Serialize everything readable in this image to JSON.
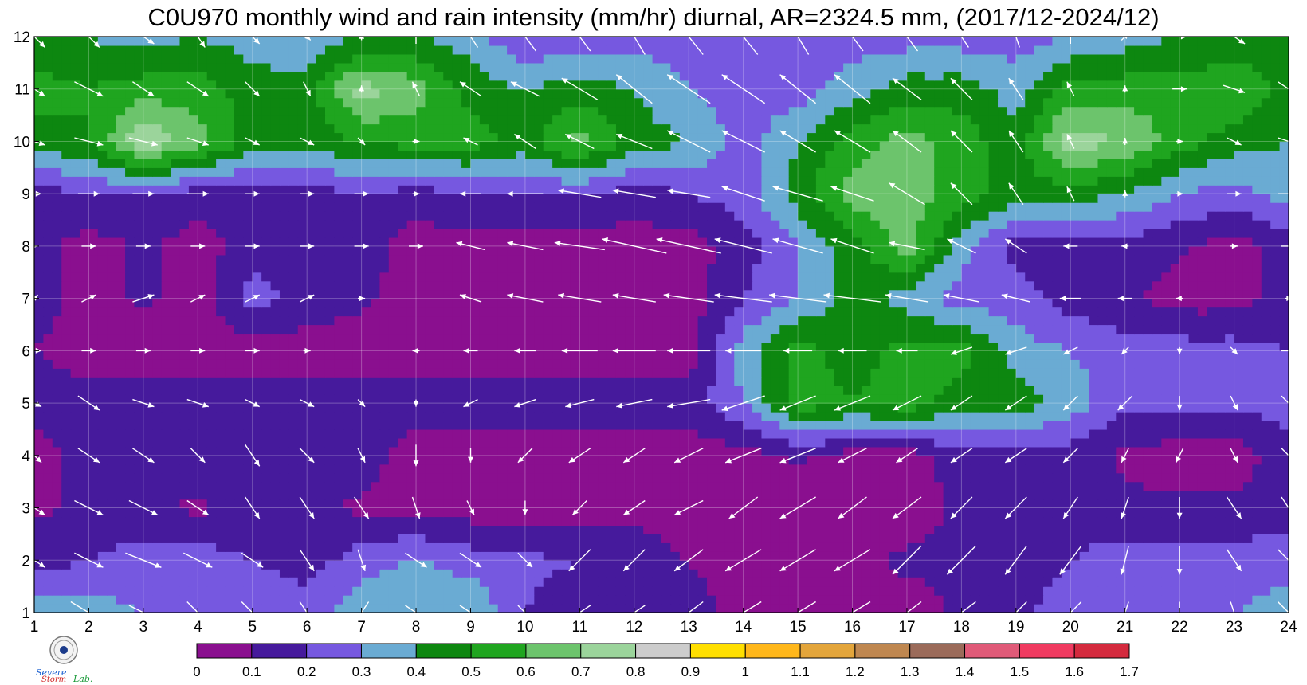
{
  "chart_data": {
    "type": "heatmap",
    "title": "C0U970 monthly wind and rain intensity (mm/hr) diurnal, AR=2324.5 mm, (2017/12-2024/12)",
    "xlabel": "",
    "ylabel": "",
    "x": [
      1,
      2,
      3,
      4,
      5,
      6,
      7,
      8,
      9,
      10,
      11,
      12,
      13,
      14,
      15,
      16,
      17,
      18,
      19,
      20,
      21,
      22,
      23,
      24
    ],
    "y": [
      1,
      2,
      3,
      4,
      5,
      6,
      7,
      8,
      9,
      10,
      11,
      12
    ],
    "xlim": [
      1,
      24
    ],
    "ylim": [
      1,
      12
    ],
    "x_ticks": [
      "1",
      "2",
      "3",
      "4",
      "5",
      "6",
      "7",
      "8",
      "9",
      "10",
      "11",
      "12",
      "13",
      "14",
      "15",
      "16",
      "17",
      "18",
      "19",
      "20",
      "21",
      "22",
      "23",
      "24"
    ],
    "y_ticks": [
      "1",
      "2",
      "3",
      "4",
      "5",
      "6",
      "7",
      "8",
      "9",
      "10",
      "11",
      "12"
    ],
    "grid": true,
    "colorbar": {
      "levels": [
        0,
        0.1,
        0.2,
        0.3,
        0.4,
        0.5,
        0.6,
        0.7,
        0.8,
        0.9,
        1,
        1.1,
        1.2,
        1.3,
        1.4,
        1.5,
        1.6,
        1.7
      ],
      "labels": [
        "0",
        "0.1",
        "0.2",
        "0.3",
        "0.4",
        "0.5",
        "0.6",
        "0.7",
        "0.8",
        "0.9",
        "1",
        "1.1",
        "1.2",
        "1.3",
        "1.4",
        "1.5",
        "1.6",
        "1.7"
      ],
      "colors": [
        "#8a0f8f",
        "#461a9c",
        "#7658e0",
        "#6aabd3",
        "#0d8710",
        "#1fa51f",
        "#6cc46c",
        "#9bd49b",
        "#cccccc",
        "#ffdf00",
        "#ffb71b",
        "#e3a53b",
        "#bf8750",
        "#9b6b5a",
        "#e05a78",
        "#f03a60",
        "#d42a3e"
      ],
      "position": "bottom"
    },
    "values": [
      [
        0.35,
        0.35,
        0.3,
        0.25,
        0.3,
        0.25,
        0.38,
        0.35,
        0.4,
        0.2,
        0.15,
        0.15,
        0.15,
        0.05,
        0.08,
        0.08,
        0.05,
        0.12,
        0.18,
        0.25,
        0.25,
        0.25,
        0.3,
        0.35
      ],
      [
        0.15,
        0.2,
        0.25,
        0.25,
        0.2,
        0.15,
        0.25,
        0.32,
        0.25,
        0.22,
        0.2,
        0.15,
        0.1,
        0.05,
        0.05,
        0.08,
        0.12,
        0.12,
        0.15,
        0.2,
        0.25,
        0.25,
        0.25,
        0.25
      ],
      [
        0.08,
        0.12,
        0.12,
        0.08,
        0.15,
        0.12,
        0.08,
        0.05,
        0.05,
        0.05,
        0.05,
        0.08,
        0.05,
        0.05,
        0.05,
        0.05,
        0.05,
        0.12,
        0.15,
        0.15,
        0.12,
        0.12,
        0.12,
        0.15
      ],
      [
        0.05,
        0.15,
        0.15,
        0.15,
        0.15,
        0.15,
        0.15,
        0.05,
        0.05,
        0.05,
        0.05,
        0.05,
        0.05,
        0.05,
        0.12,
        0.05,
        0.05,
        0.15,
        0.15,
        0.15,
        0.08,
        0.05,
        0.05,
        0.15
      ],
      [
        0.15,
        0.15,
        0.15,
        0.15,
        0.15,
        0.15,
        0.15,
        0.15,
        0.15,
        0.15,
        0.15,
        0.15,
        0.15,
        0.3,
        0.55,
        0.5,
        0.55,
        0.45,
        0.45,
        0.35,
        0.22,
        0.22,
        0.22,
        0.25
      ],
      [
        0.1,
        0.05,
        0.05,
        0.05,
        0.05,
        0.05,
        0.05,
        0.05,
        0.05,
        0.05,
        0.05,
        0.05,
        0.05,
        0.35,
        0.55,
        0.45,
        0.55,
        0.55,
        0.35,
        0.3,
        0.25,
        0.25,
        0.25,
        0.2
      ],
      [
        0.15,
        0.05,
        0.12,
        0.05,
        0.25,
        0.15,
        0.12,
        0.05,
        0.05,
        0.05,
        0.05,
        0.05,
        0.05,
        0.2,
        0.3,
        0.45,
        0.35,
        0.25,
        0.25,
        0.15,
        0.12,
        0.05,
        0.05,
        0.15
      ],
      [
        0.15,
        0.05,
        0.12,
        0.05,
        0.15,
        0.15,
        0.15,
        0.05,
        0.05,
        0.05,
        0.05,
        0.05,
        0.05,
        0.15,
        0.3,
        0.45,
        0.65,
        0.35,
        0.15,
        0.15,
        0.15,
        0.12,
        0.05,
        0.15
      ],
      [
        0.15,
        0.2,
        0.2,
        0.15,
        0.15,
        0.15,
        0.2,
        0.15,
        0.2,
        0.2,
        0.2,
        0.15,
        0.2,
        0.25,
        0.45,
        0.65,
        0.65,
        0.55,
        0.45,
        0.45,
        0.4,
        0.3,
        0.25,
        0.35
      ],
      [
        0.45,
        0.5,
        0.8,
        0.65,
        0.45,
        0.45,
        0.5,
        0.55,
        0.55,
        0.45,
        0.65,
        0.45,
        0.4,
        0.25,
        0.4,
        0.55,
        0.65,
        0.55,
        0.45,
        0.75,
        0.7,
        0.55,
        0.45,
        0.4
      ],
      [
        0.55,
        0.5,
        0.55,
        0.55,
        0.45,
        0.45,
        0.75,
        0.65,
        0.45,
        0.4,
        0.45,
        0.4,
        0.3,
        0.25,
        0.25,
        0.35,
        0.45,
        0.45,
        0.35,
        0.55,
        0.55,
        0.55,
        0.6,
        0.45
      ],
      [
        0.4,
        0.4,
        0.35,
        0.4,
        0.35,
        0.3,
        0.4,
        0.4,
        0.35,
        0.2,
        0.25,
        0.25,
        0.25,
        0.2,
        0.2,
        0.25,
        0.25,
        0.25,
        0.25,
        0.3,
        0.35,
        0.4,
        0.4,
        0.45
      ]
    ],
    "wind_u": [
      [
        0.4,
        0.5,
        0.4,
        0.3,
        0.3,
        0.2,
        -0.2,
        0.3,
        0.3,
        0.2,
        -0.3,
        -0.3,
        -0.4,
        -0.5,
        -0.5,
        -0.5,
        -0.4,
        -0.4,
        -0.3,
        -0.3,
        -0.1,
        0,
        0.1,
        0.3
      ],
      [
        0.3,
        0.4,
        0.5,
        0.4,
        0.3,
        0.2,
        0.1,
        0.3,
        0.3,
        0.2,
        -0.3,
        -0.3,
        -0.4,
        -0.5,
        -0.5,
        -0.5,
        -0.4,
        -0.4,
        -0.3,
        -0.3,
        -0.1,
        0,
        0.2,
        0.3
      ],
      [
        0.3,
        0.4,
        0.4,
        0.3,
        0.2,
        0.2,
        0.2,
        0.1,
        0.1,
        0,
        -0.2,
        -0.3,
        -0.4,
        -0.4,
        -0.5,
        -0.4,
        -0.4,
        -0.3,
        -0.3,
        -0.2,
        -0.1,
        0,
        0.2,
        0.2
      ],
      [
        0.2,
        0.3,
        0.3,
        0.2,
        0.2,
        0.2,
        0.1,
        0,
        0,
        -0.2,
        -0.3,
        -0.3,
        -0.4,
        -0.5,
        -0.5,
        -0.4,
        -0.3,
        -0.3,
        -0.3,
        -0.2,
        -0.1,
        -0.1,
        0.1,
        0.2
      ],
      [
        0.2,
        0.3,
        0.3,
        0.3,
        0.2,
        0.2,
        0.1,
        0,
        -0.2,
        -0.3,
        -0.4,
        -0.5,
        -0.6,
        -0.6,
        -0.5,
        -0.5,
        -0.4,
        -0.3,
        -0.3,
        -0.2,
        -0.2,
        0,
        0.1,
        0.2
      ],
      [
        0.2,
        0.2,
        0.2,
        0.2,
        0.2,
        0.1,
        0,
        -0.1,
        -0.2,
        -0.3,
        -0.5,
        -0.6,
        -0.6,
        -0.5,
        -0.4,
        -0.4,
        -0.3,
        -0.3,
        -0.3,
        -0.2,
        -0.1,
        0,
        0.1,
        0.2
      ],
      [
        0.1,
        0.2,
        0.3,
        0.2,
        0.2,
        0.2,
        0.1,
        0,
        -0.3,
        -0.5,
        -0.6,
        -0.6,
        -0.7,
        -0.8,
        -0.8,
        -0.8,
        -0.6,
        -0.5,
        -0.4,
        -0.3,
        -0.2,
        -0.1,
        0,
        0.1
      ],
      [
        0.1,
        0.2,
        0.2,
        0.2,
        0.2,
        0.2,
        0.2,
        0.2,
        -0.4,
        -0.5,
        -0.7,
        -0.9,
        -0.9,
        -0.8,
        -0.7,
        -0.6,
        -0.5,
        -0.4,
        -0.3,
        -0.2,
        -0.1,
        0,
        0.1,
        0.2
      ],
      [
        0.2,
        0.3,
        0.3,
        0.3,
        0.2,
        0.2,
        0.2,
        0.1,
        -0.3,
        -0.5,
        -0.6,
        -0.6,
        -0.6,
        -0.6,
        -0.7,
        -0.6,
        -0.5,
        -0.3,
        -0.2,
        -0.1,
        0,
        0.1,
        0.2,
        0.3
      ],
      [
        0.3,
        0.4,
        0.4,
        0.3,
        0.2,
        0.2,
        0.1,
        0.1,
        -0.2,
        -0.3,
        -0.4,
        -0.5,
        -0.6,
        -0.6,
        -0.5,
        -0.5,
        -0.4,
        -0.3,
        -0.2,
        -0.1,
        0,
        0.1,
        0.2,
        0.3
      ],
      [
        0.3,
        0.4,
        0.3,
        0.3,
        0.2,
        0.1,
        0,
        -0.1,
        -0.3,
        -0.4,
        -0.5,
        -0.5,
        -0.6,
        -0.6,
        -0.5,
        -0.5,
        -0.4,
        -0.3,
        -0.2,
        -0.1,
        0,
        0.2,
        0.3,
        0.3
      ],
      [
        0.3,
        0.3,
        0.3,
        0.2,
        0.2,
        0.1,
        0,
        0,
        -0.2,
        -0.3,
        -0.3,
        -0.3,
        -0.4,
        -0.4,
        -0.3,
        -0.3,
        -0.3,
        -0.2,
        -0.1,
        0,
        0.1,
        0.2,
        0.3,
        0.3
      ]
    ],
    "wind_v": [
      [
        -0.3,
        -0.3,
        -0.2,
        -0.3,
        -0.3,
        -0.3,
        -0.3,
        -0.2,
        -0.2,
        -0.2,
        -0.2,
        -0.2,
        -0.3,
        -0.3,
        -0.3,
        -0.3,
        -0.3,
        -0.3,
        -0.3,
        -0.3,
        -0.3,
        -0.3,
        -0.3,
        -0.3
      ],
      [
        -0.2,
        -0.2,
        -0.2,
        -0.2,
        -0.2,
        -0.3,
        -0.3,
        -0.2,
        -0.2,
        -0.2,
        -0.3,
        -0.3,
        -0.3,
        -0.3,
        -0.3,
        -0.3,
        -0.4,
        -0.4,
        -0.4,
        -0.4,
        -0.4,
        -0.4,
        -0.3,
        -0.3
      ],
      [
        -0.2,
        -0.2,
        -0.2,
        -0.2,
        -0.3,
        -0.3,
        -0.3,
        -0.3,
        -0.2,
        -0.2,
        -0.2,
        -0.2,
        -0.2,
        -0.3,
        -0.3,
        -0.3,
        -0.3,
        -0.3,
        -0.3,
        -0.3,
        -0.3,
        -0.3,
        -0.3,
        -0.3
      ],
      [
        -0.2,
        -0.2,
        -0.2,
        -0.2,
        -0.3,
        -0.2,
        -0.2,
        -0.3,
        -0.2,
        -0.2,
        -0.2,
        -0.2,
        -0.2,
        -0.2,
        -0.2,
        -0.2,
        -0.2,
        -0.2,
        -0.2,
        -0.2,
        -0.2,
        -0.2,
        -0.2,
        -0.2
      ],
      [
        -0.1,
        -0.2,
        -0.1,
        -0.1,
        -0.1,
        -0.1,
        -0.1,
        -0.1,
        -0.1,
        -0.1,
        -0.1,
        -0.1,
        -0.1,
        -0.2,
        -0.2,
        -0.2,
        -0.2,
        -0.2,
        -0.2,
        -0.2,
        -0.2,
        -0.2,
        -0.2,
        -0.2
      ],
      [
        0,
        0,
        0,
        0,
        0,
        0,
        0,
        0,
        0,
        0,
        0,
        0,
        0,
        0,
        0,
        0,
        0,
        -0.1,
        -0.1,
        -0.1,
        -0.1,
        -0.1,
        -0.1,
        0
      ],
      [
        0.1,
        0.1,
        0.1,
        0.1,
        0.1,
        0.1,
        0,
        0,
        0.1,
        0.1,
        0.1,
        0.1,
        0.1,
        0.1,
        0.1,
        0.1,
        0.1,
        0.1,
        0.1,
        0,
        0,
        0,
        0,
        0
      ],
      [
        0,
        0,
        0,
        0,
        0,
        0,
        0,
        0,
        0.1,
        0.1,
        0.1,
        0.2,
        0.2,
        0.2,
        0.2,
        0.2,
        0.1,
        0.2,
        0.2,
        0,
        0,
        0,
        0,
        0
      ],
      [
        0,
        0,
        0,
        0,
        0,
        0,
        0,
        0,
        0,
        0,
        0.1,
        0.1,
        0.1,
        0.2,
        0.2,
        0.2,
        0.3,
        0.3,
        0.3,
        0.2,
        0.1,
        0,
        0,
        0
      ],
      [
        -0.1,
        -0.1,
        -0.1,
        -0.1,
        -0.1,
        -0.1,
        -0.1,
        0,
        0.1,
        0.2,
        0.2,
        0.2,
        0.3,
        0.3,
        0.3,
        0.3,
        0.3,
        0.3,
        0.3,
        0.2,
        0.1,
        0,
        -0.1,
        -0.1
      ],
      [
        -0.2,
        -0.2,
        -0.2,
        -0.2,
        -0.2,
        -0.2,
        0.1,
        0.2,
        0.2,
        0.2,
        0.3,
        0.4,
        0.4,
        0.4,
        0.4,
        0.4,
        0.3,
        0.3,
        0.3,
        0.2,
        0.1,
        0,
        -0.1,
        -0.2
      ],
      [
        -0.3,
        -0.3,
        -0.2,
        -0.3,
        -0.2,
        -0.1,
        0.1,
        0.2,
        0.3,
        0.4,
        0.4,
        0.5,
        0.5,
        0.5,
        0.5,
        0.4,
        0.4,
        0.3,
        0.3,
        0.2,
        0.1,
        0,
        -0.2,
        -0.3
      ]
    ]
  }
}
